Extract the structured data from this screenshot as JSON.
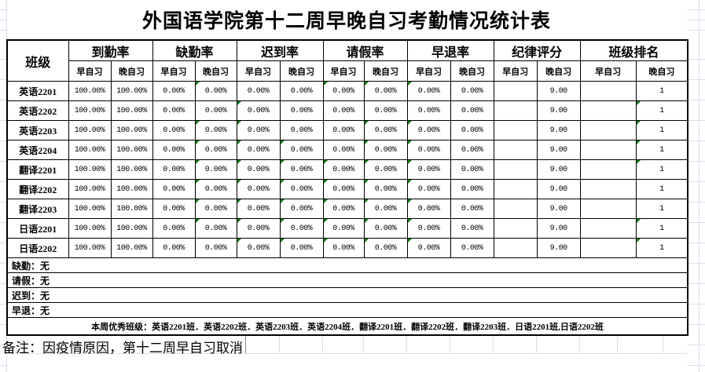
{
  "title": "外国语学院第十二周早晚自习考勤情况统计表",
  "colors": {
    "marker": "#0f7c0f",
    "gridline": "#d8dfeb",
    "border": "#000000",
    "background": "#ffffff"
  },
  "icons": {
    "marker_icon": "green-corner-triangle"
  },
  "table": {
    "class_header": "班级",
    "sub_morning": "早自习",
    "sub_evening": "晚自习",
    "groups": [
      {
        "key": "attendance-rate",
        "label": "到勤率"
      },
      {
        "key": "absence-rate",
        "label": "缺勤率"
      },
      {
        "key": "late-rate",
        "label": "迟到率"
      },
      {
        "key": "leave-rate",
        "label": "请假率"
      },
      {
        "key": "early-leave-rate",
        "label": "早退率"
      },
      {
        "key": "discipline-score",
        "label": "纪律评分"
      },
      {
        "key": "class-ranking",
        "label": "班级排名"
      }
    ],
    "rows": [
      {
        "name": "英语2201",
        "values": [
          "100.00%",
          "100.00%",
          "0.00%",
          "0.00%",
          "0.00%",
          "0.00%",
          "0.00%",
          "0.00%",
          "0.00%",
          "0.00%",
          "",
          "9.00",
          "",
          "1"
        ],
        "markers": [
          3,
          6,
          7,
          8
        ]
      },
      {
        "name": "英语2202",
        "values": [
          "100.00%",
          "100.00%",
          "0.00%",
          "0.00%",
          "0.00%",
          "0.00%",
          "0.00%",
          "0.00%",
          "0.00%",
          "0.00%",
          "",
          "9.00",
          "",
          "1"
        ],
        "markers": [
          4,
          13
        ]
      },
      {
        "name": "英语2203",
        "values": [
          "100.00%",
          "100.00%",
          "0.00%",
          "0.00%",
          "0.00%",
          "0.00%",
          "0.00%",
          "0.00%",
          "0.00%",
          "0.00%",
          "",
          "9.00",
          "",
          "1"
        ],
        "markers": [
          3,
          4,
          7,
          8,
          13
        ]
      },
      {
        "name": "英语2204",
        "values": [
          "100.00%",
          "100.00%",
          "0.00%",
          "0.00%",
          "0.00%",
          "0.00%",
          "0.00%",
          "0.00%",
          "0.00%",
          "0.00%",
          "",
          "9.00",
          "",
          "1"
        ],
        "markers": [
          3,
          4,
          5,
          7,
          8,
          13
        ]
      },
      {
        "name": "翻译2201",
        "values": [
          "100.00%",
          "100.00%",
          "0.00%",
          "0.00%",
          "0.00%",
          "0.00%",
          "0.00%",
          "0.00%",
          "0.00%",
          "0.00%",
          "",
          "9.00",
          "",
          "1"
        ],
        "markers": [
          3,
          4,
          5,
          6,
          7,
          8,
          13
        ]
      },
      {
        "name": "翻译2202",
        "values": [
          "100.00%",
          "100.00%",
          "0.00%",
          "0.00%",
          "0.00%",
          "0.00%",
          "0.00%",
          "0.00%",
          "0.00%",
          "0.00%",
          "",
          "9.00",
          "",
          "1"
        ],
        "markers": [
          3,
          4,
          5,
          6,
          7,
          8
        ]
      },
      {
        "name": "翻译2203",
        "values": [
          "100.00%",
          "100.00%",
          "0.00%",
          "0.00%",
          "0.00%",
          "0.00%",
          "0.00%",
          "0.00%",
          "0.00%",
          "0.00%",
          "",
          "9.00",
          "",
          "1"
        ],
        "markers": [
          3,
          4,
          5,
          6,
          7,
          8
        ]
      },
      {
        "name": "日语2201",
        "values": [
          "100.00%",
          "100.00%",
          "0.00%",
          "0.00%",
          "0.00%",
          "0.00%",
          "0.00%",
          "0.00%",
          "0.00%",
          "0.00%",
          "",
          "9.00",
          "",
          "1"
        ],
        "markers": [
          3,
          4,
          5,
          6,
          7,
          8,
          13
        ]
      },
      {
        "name": "日语2202",
        "values": [
          "100.00%",
          "100.00%",
          "0.00%",
          "0.00%",
          "0.00%",
          "0.00%",
          "0.00%",
          "0.00%",
          "0.00%",
          "0.00%",
          "",
          "9.00",
          "",
          "1"
        ],
        "markers": [
          4,
          5,
          6,
          7,
          8,
          13
        ]
      }
    ]
  },
  "footer": {
    "notes": [
      {
        "key": "absence",
        "text": "缺勤：无"
      },
      {
        "key": "leave",
        "text": "请假：无"
      },
      {
        "key": "late",
        "text": "迟到：无"
      },
      {
        "key": "early-leave",
        "text": "早退：无"
      }
    ],
    "excellent": "本周优秀班级：英语2201班．英语2202班．英语2203班．英语2204班．翻译2201班．翻译2202班．翻译2203班．日语2201班,日语2202班",
    "remark": "备注：因疫情原因，第十二周早自习取消"
  }
}
